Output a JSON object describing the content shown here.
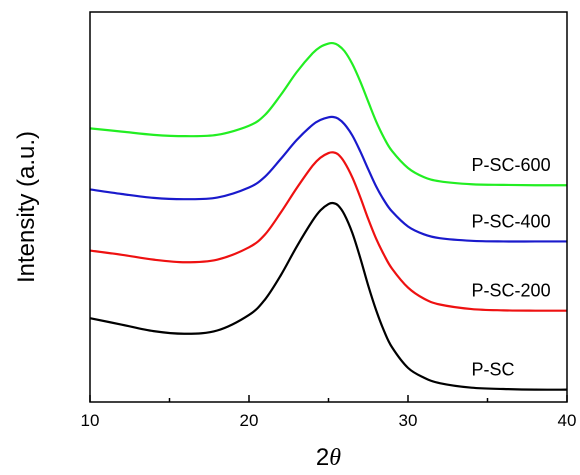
{
  "chart_data": {
    "type": "line",
    "title": "",
    "xlabel": {
      "prefix": "2",
      "symbol": "θ"
    },
    "ylabel": "Intensity (a.u.)",
    "xlim": [
      10,
      40
    ],
    "xticks": [
      10,
      20,
      30,
      40
    ],
    "yticks_shown": false,
    "grid": false,
    "legend": "none",
    "series": [
      {
        "name": "P-SC",
        "color": "#000000",
        "x": [
          10,
          12,
          14,
          16,
          18,
          20,
          21,
          22,
          23,
          24,
          24.5,
          25,
          25.3,
          25.6,
          26,
          26.5,
          27,
          27.5,
          28,
          28.5,
          29,
          30,
          31,
          32,
          34,
          36,
          38,
          40
        ],
        "y": [
          0.258,
          0.238,
          0.218,
          0.21,
          0.22,
          0.268,
          0.315,
          0.39,
          0.478,
          0.558,
          0.59,
          0.609,
          0.612,
          0.605,
          0.577,
          0.52,
          0.443,
          0.358,
          0.282,
          0.218,
          0.168,
          0.105,
          0.075,
          0.058,
          0.044,
          0.04,
          0.038,
          0.038
        ]
      },
      {
        "name": "P-SC-200",
        "color": "#ee1111",
        "x": [
          10,
          12,
          14,
          16,
          18,
          20,
          21,
          22,
          23,
          24,
          24.5,
          25,
          25.3,
          25.6,
          26,
          26.5,
          27,
          27.5,
          28,
          28.5,
          29,
          30,
          31,
          32,
          34,
          36,
          38,
          40
        ],
        "y": [
          0.466,
          0.453,
          0.438,
          0.43,
          0.438,
          0.476,
          0.515,
          0.583,
          0.658,
          0.727,
          0.752,
          0.766,
          0.768,
          0.762,
          0.738,
          0.691,
          0.63,
          0.563,
          0.502,
          0.452,
          0.41,
          0.352,
          0.318,
          0.3,
          0.286,
          0.282,
          0.281,
          0.281
        ]
      },
      {
        "name": "P-SC-400",
        "color": "#1a1acc",
        "x": [
          10,
          12,
          14,
          16,
          18,
          20,
          21,
          22,
          23,
          24,
          24.5,
          25,
          25.3,
          25.6,
          26,
          26.5,
          27,
          27.5,
          28,
          28.5,
          29,
          30,
          31,
          32,
          34,
          36,
          38,
          40
        ],
        "y": [
          0.654,
          0.64,
          0.628,
          0.624,
          0.629,
          0.66,
          0.693,
          0.748,
          0.806,
          0.853,
          0.868,
          0.876,
          0.877,
          0.872,
          0.855,
          0.82,
          0.771,
          0.716,
          0.663,
          0.62,
          0.586,
          0.54,
          0.516,
          0.504,
          0.496,
          0.494,
          0.494,
          0.494
        ]
      },
      {
        "name": "P-SC-600",
        "color": "#22ee22",
        "x": [
          10,
          12,
          14,
          16,
          18,
          20,
          21,
          22,
          23,
          24,
          24.5,
          25,
          25.3,
          25.6,
          26,
          26.5,
          27,
          27.5,
          28,
          28.5,
          29,
          30,
          31,
          32,
          34,
          36,
          38,
          40
        ],
        "y": [
          0.842,
          0.832,
          0.822,
          0.818,
          0.822,
          0.85,
          0.883,
          0.945,
          1.015,
          1.073,
          1.093,
          1.103,
          1.104,
          1.098,
          1.08,
          1.04,
          0.986,
          0.924,
          0.863,
          0.812,
          0.772,
          0.72,
          0.692,
          0.679,
          0.67,
          0.668,
          0.667,
          0.667
        ]
      }
    ]
  }
}
